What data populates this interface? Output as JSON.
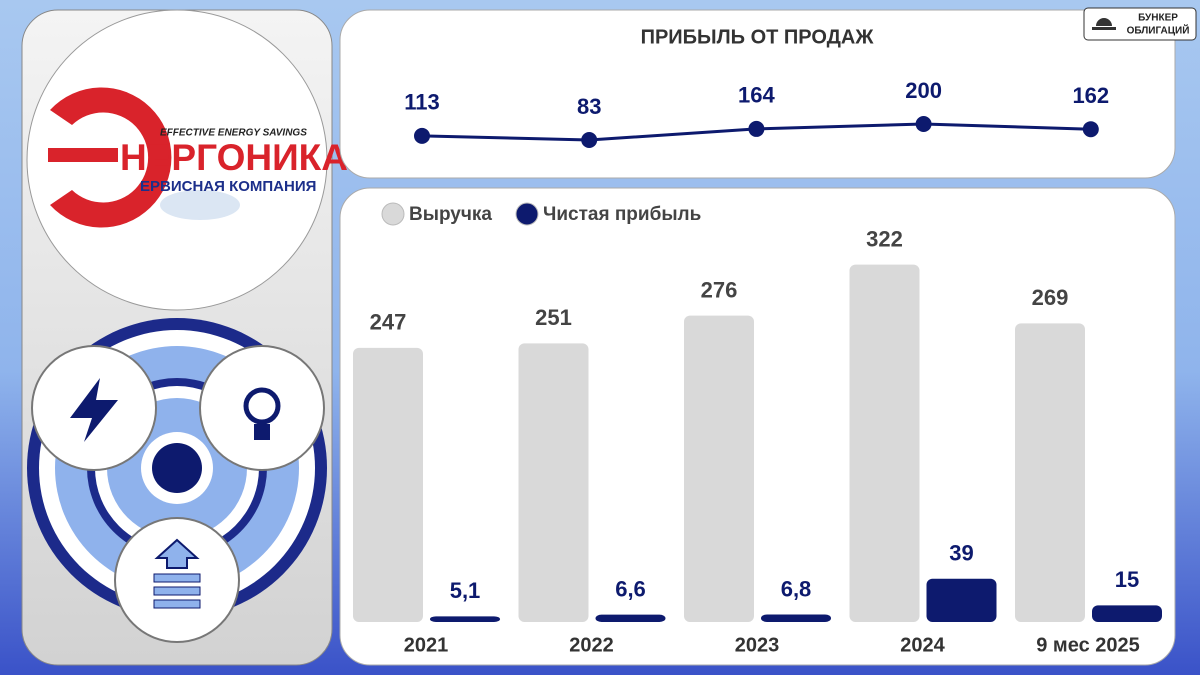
{
  "brand": {
    "lines": [
      "БУНКЕР",
      "ОБЛИГАЦИЙ"
    ]
  },
  "logo": {
    "tagline": "EFFECTIVE ENERGY SAVINGS",
    "title": "НЕРГОНИКА",
    "subtitle": "ЕРВИСНАЯ КОМПАНИЯ"
  },
  "chart_data": [
    {
      "type": "line",
      "title": "ПРИБЫЛЬ ОТ ПРОДАЖ",
      "values": [
        113,
        83,
        164,
        200,
        162
      ],
      "color": "#0d1a6e"
    },
    {
      "type": "bar",
      "categories": [
        "2021",
        "2022",
        "2023",
        "2024",
        "9 мес 2025"
      ],
      "series": [
        {
          "name": "Выручка",
          "color": "#d9d9d9",
          "values": [
            247,
            251,
            276,
            322,
            269
          ]
        },
        {
          "name": "Чистая прибыль",
          "color": "#0d1a6e",
          "values": [
            5.1,
            6.6,
            6.8,
            39,
            15
          ],
          "value_labels": [
            "5,1",
            "6,6",
            "6,8",
            "39",
            "15"
          ]
        }
      ]
    }
  ]
}
